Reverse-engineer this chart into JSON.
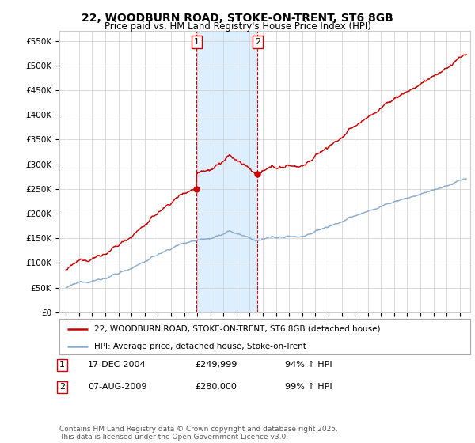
{
  "title": "22, WOODBURN ROAD, STOKE-ON-TRENT, ST6 8GB",
  "subtitle": "Price paid vs. HM Land Registry's House Price Index (HPI)",
  "property_label": "22, WOODBURN ROAD, STOKE-ON-TRENT, ST6 8GB (detached house)",
  "hpi_label": "HPI: Average price, detached house, Stoke-on-Trent",
  "sale1_date": "17-DEC-2004",
  "sale1_price": 249999,
  "sale1_pct": "94% ↑ HPI",
  "sale2_date": "07-AUG-2009",
  "sale2_price": 280000,
  "sale2_pct": "99% ↑ HPI",
  "footnote": "Contains HM Land Registry data © Crown copyright and database right 2025.\nThis data is licensed under the Open Government Licence v3.0.",
  "line_color_property": "#cc0000",
  "line_color_hpi": "#88aacc",
  "shade_color": "#ddeeff",
  "vline_color": "#cc0000",
  "ylim": [
    0,
    570000
  ],
  "yticks": [
    0,
    50000,
    100000,
    150000,
    200000,
    250000,
    300000,
    350000,
    400000,
    450000,
    500000,
    550000
  ],
  "ytick_labels": [
    "£0",
    "£50K",
    "£100K",
    "£150K",
    "£200K",
    "£250K",
    "£300K",
    "£350K",
    "£400K",
    "£450K",
    "£500K",
    "£550K"
  ],
  "sale1_x": 2004.96,
  "sale2_x": 2009.59,
  "xlim_left": 1994.5,
  "xlim_right": 2025.8
}
